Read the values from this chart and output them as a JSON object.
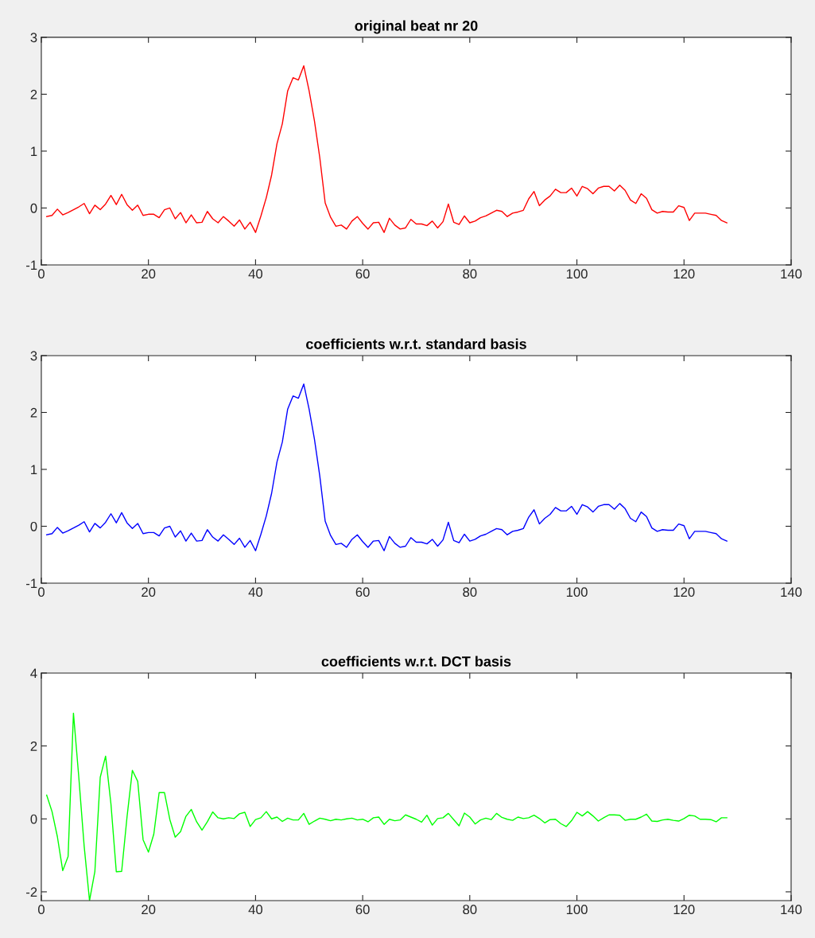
{
  "chart_data": [
    {
      "type": "line",
      "title": "original beat nr 20",
      "x": [
        1,
        2,
        3,
        4,
        5,
        6,
        7,
        8,
        9,
        10,
        11,
        12,
        13,
        14,
        15,
        16,
        17,
        18,
        19,
        20,
        21,
        22,
        23,
        24,
        25,
        26,
        27,
        28,
        29,
        30,
        31,
        32,
        33,
        34,
        35,
        36,
        37,
        38,
        39,
        40,
        41,
        42,
        43,
        44,
        45,
        46,
        47,
        48,
        49,
        50,
        51,
        52,
        53,
        54,
        55,
        56,
        57,
        58,
        59,
        60,
        61,
        62,
        63,
        64,
        65,
        66,
        67,
        68,
        69,
        70,
        71,
        72,
        73,
        74,
        75,
        76,
        77,
        78,
        79,
        80,
        81,
        82,
        83,
        84,
        85,
        86,
        87,
        88,
        89,
        90,
        91,
        92,
        93,
        94,
        95,
        96,
        97,
        98,
        99,
        100,
        101,
        102,
        103,
        104,
        105,
        106,
        107,
        108,
        109,
        110,
        111,
        112,
        113,
        114,
        115,
        116,
        117,
        118,
        119,
        120,
        121,
        122,
        123,
        124,
        125,
        126,
        127,
        128
      ],
      "series": [
        {
          "color": "#ff0000",
          "values": [
            -0.15,
            -0.13,
            -0.02,
            -0.12,
            -0.08,
            -0.03,
            0.02,
            0.08,
            -0.1,
            0.05,
            -0.03,
            0.07,
            0.22,
            0.06,
            0.24,
            0.06,
            -0.04,
            0.05,
            -0.13,
            -0.11,
            -0.11,
            -0.17,
            -0.03,
            0.0,
            -0.19,
            -0.08,
            -0.26,
            -0.12,
            -0.26,
            -0.25,
            -0.06,
            -0.19,
            -0.26,
            -0.15,
            -0.23,
            -0.32,
            -0.21,
            -0.37,
            -0.25,
            -0.43,
            -0.14,
            0.18,
            0.58,
            1.13,
            1.48,
            2.06,
            2.29,
            2.25,
            2.5,
            2.06,
            1.53,
            0.88,
            0.09,
            -0.16,
            -0.32,
            -0.3,
            -0.37,
            -0.23,
            -0.15,
            -0.27,
            -0.37,
            -0.26,
            -0.25,
            -0.43,
            -0.18,
            -0.3,
            -0.37,
            -0.35,
            -0.2,
            -0.28,
            -0.28,
            -0.31,
            -0.23,
            -0.35,
            -0.24,
            0.07,
            -0.25,
            -0.29,
            -0.14,
            -0.26,
            -0.23,
            -0.17,
            -0.14,
            -0.09,
            -0.04,
            -0.06,
            -0.15,
            -0.09,
            -0.07,
            -0.04,
            0.16,
            0.29,
            0.04,
            0.14,
            0.21,
            0.33,
            0.27,
            0.27,
            0.35,
            0.21,
            0.38,
            0.34,
            0.25,
            0.35,
            0.38,
            0.38,
            0.3,
            0.4,
            0.31,
            0.14,
            0.08,
            0.25,
            0.17,
            -0.03,
            -0.09,
            -0.06,
            -0.07,
            -0.07,
            0.04,
            0.01,
            -0.22,
            -0.09,
            -0.09,
            -0.09,
            -0.11,
            -0.13,
            -0.22,
            -0.26
          ]
        }
      ],
      "xlim": [
        0,
        140
      ],
      "xticks": [
        0,
        20,
        40,
        60,
        80,
        100,
        120,
        140
      ],
      "ylim": [
        -1,
        3
      ],
      "yticks": [
        -1,
        0,
        1,
        2,
        3
      ],
      "grid": false
    },
    {
      "type": "line",
      "title": "coefficients w.r.t. standard basis",
      "x": [
        1,
        2,
        3,
        4,
        5,
        6,
        7,
        8,
        9,
        10,
        11,
        12,
        13,
        14,
        15,
        16,
        17,
        18,
        19,
        20,
        21,
        22,
        23,
        24,
        25,
        26,
        27,
        28,
        29,
        30,
        31,
        32,
        33,
        34,
        35,
        36,
        37,
        38,
        39,
        40,
        41,
        42,
        43,
        44,
        45,
        46,
        47,
        48,
        49,
        50,
        51,
        52,
        53,
        54,
        55,
        56,
        57,
        58,
        59,
        60,
        61,
        62,
        63,
        64,
        65,
        66,
        67,
        68,
        69,
        70,
        71,
        72,
        73,
        74,
        75,
        76,
        77,
        78,
        79,
        80,
        81,
        82,
        83,
        84,
        85,
        86,
        87,
        88,
        89,
        90,
        91,
        92,
        93,
        94,
        95,
        96,
        97,
        98,
        99,
        100,
        101,
        102,
        103,
        104,
        105,
        106,
        107,
        108,
        109,
        110,
        111,
        112,
        113,
        114,
        115,
        116,
        117,
        118,
        119,
        120,
        121,
        122,
        123,
        124,
        125,
        126,
        127,
        128
      ],
      "series": [
        {
          "color": "#0000ff",
          "values": [
            -0.15,
            -0.13,
            -0.02,
            -0.12,
            -0.08,
            -0.03,
            0.02,
            0.08,
            -0.1,
            0.05,
            -0.03,
            0.07,
            0.22,
            0.06,
            0.24,
            0.06,
            -0.04,
            0.05,
            -0.13,
            -0.11,
            -0.11,
            -0.17,
            -0.03,
            0.0,
            -0.19,
            -0.08,
            -0.26,
            -0.12,
            -0.26,
            -0.25,
            -0.06,
            -0.19,
            -0.26,
            -0.15,
            -0.23,
            -0.32,
            -0.21,
            -0.37,
            -0.25,
            -0.43,
            -0.14,
            0.18,
            0.58,
            1.13,
            1.48,
            2.06,
            2.29,
            2.25,
            2.5,
            2.06,
            1.53,
            0.88,
            0.09,
            -0.16,
            -0.32,
            -0.3,
            -0.37,
            -0.23,
            -0.15,
            -0.27,
            -0.37,
            -0.26,
            -0.25,
            -0.43,
            -0.18,
            -0.3,
            -0.37,
            -0.35,
            -0.2,
            -0.28,
            -0.28,
            -0.31,
            -0.23,
            -0.35,
            -0.24,
            0.07,
            -0.25,
            -0.29,
            -0.14,
            -0.26,
            -0.23,
            -0.17,
            -0.14,
            -0.09,
            -0.04,
            -0.06,
            -0.15,
            -0.09,
            -0.07,
            -0.04,
            0.16,
            0.29,
            0.04,
            0.14,
            0.21,
            0.33,
            0.27,
            0.27,
            0.35,
            0.21,
            0.38,
            0.34,
            0.25,
            0.35,
            0.38,
            0.38,
            0.3,
            0.4,
            0.31,
            0.14,
            0.08,
            0.25,
            0.17,
            -0.03,
            -0.09,
            -0.06,
            -0.07,
            -0.07,
            0.04,
            0.01,
            -0.22,
            -0.09,
            -0.09,
            -0.09,
            -0.11,
            -0.13,
            -0.22,
            -0.26
          ]
        }
      ],
      "xlim": [
        0,
        140
      ],
      "xticks": [
        0,
        20,
        40,
        60,
        80,
        100,
        120,
        140
      ],
      "ylim": [
        -1,
        3
      ],
      "yticks": [
        -1,
        0,
        1,
        2,
        3
      ],
      "grid": false
    },
    {
      "type": "line",
      "title": "coefficients w.r.t. DCT basis",
      "x": [
        1,
        2,
        3,
        4,
        5,
        6,
        7,
        8,
        9,
        10,
        11,
        12,
        13,
        14,
        15,
        16,
        17,
        18,
        19,
        20,
        21,
        22,
        23,
        24,
        25,
        26,
        27,
        28,
        29,
        30,
        31,
        32,
        33,
        34,
        35,
        36,
        37,
        38,
        39,
        40,
        41,
        42,
        43,
        44,
        45,
        46,
        47,
        48,
        49,
        50,
        51,
        52,
        53,
        54,
        55,
        56,
        57,
        58,
        59,
        60,
        61,
        62,
        63,
        64,
        65,
        66,
        67,
        68,
        69,
        70,
        71,
        72,
        73,
        74,
        75,
        76,
        77,
        78,
        79,
        80,
        81,
        82,
        83,
        84,
        85,
        86,
        87,
        88,
        89,
        90,
        91,
        92,
        93,
        94,
        95,
        96,
        97,
        98,
        99,
        100,
        101,
        102,
        103,
        104,
        105,
        106,
        107,
        108,
        109,
        110,
        111,
        112,
        113,
        114,
        115,
        116,
        117,
        118,
        119,
        120,
        121,
        122,
        123,
        124,
        125,
        126,
        127,
        128
      ],
      "series": [
        {
          "color": "#00ff00",
          "values": [
            0.65,
            0.2,
            -0.49,
            -1.42,
            -1.03,
            2.9,
            1.14,
            -0.75,
            -2.24,
            -1.44,
            1.14,
            1.72,
            0.41,
            -1.45,
            -1.44,
            0.05,
            1.33,
            1.03,
            -0.57,
            -0.91,
            -0.42,
            0.72,
            0.72,
            -0.02,
            -0.5,
            -0.35,
            0.07,
            0.26,
            -0.08,
            -0.31,
            -0.08,
            0.19,
            0.03,
            0.0,
            0.03,
            0.01,
            0.14,
            0.18,
            -0.21,
            -0.02,
            0.03,
            0.2,
            0.0,
            0.05,
            -0.07,
            0.02,
            -0.03,
            -0.03,
            0.15,
            -0.15,
            -0.06,
            0.02,
            -0.01,
            -0.05,
            -0.01,
            -0.03,
            0.0,
            0.02,
            -0.03,
            -0.01,
            -0.08,
            0.03,
            0.05,
            -0.15,
            -0.01,
            -0.05,
            -0.03,
            0.11,
            0.05,
            -0.01,
            -0.09,
            0.1,
            -0.17,
            0.01,
            0.03,
            0.15,
            -0.02,
            -0.19,
            0.16,
            0.05,
            -0.14,
            -0.03,
            0.02,
            -0.02,
            0.15,
            0.04,
            -0.01,
            -0.04,
            0.05,
            0.01,
            0.03,
            0.1,
            0.01,
            -0.11,
            -0.02,
            -0.01,
            -0.13,
            -0.21,
            -0.05,
            0.18,
            0.08,
            0.2,
            0.08,
            -0.06,
            0.03,
            0.11,
            0.11,
            0.1,
            -0.04,
            -0.01,
            -0.01,
            0.05,
            0.13,
            -0.06,
            -0.07,
            -0.03,
            -0.01,
            -0.04,
            -0.06,
            0.01,
            0.1,
            0.08,
            -0.01,
            -0.01,
            -0.02,
            -0.08,
            0.03,
            0.03
          ]
        }
      ],
      "xlim": [
        0,
        140
      ],
      "xticks": [
        0,
        20,
        40,
        60,
        80,
        100,
        120,
        140
      ],
      "ylim": [
        -2.24,
        4
      ],
      "yticks": [
        -2,
        0,
        2,
        4
      ],
      "grid": false
    }
  ]
}
